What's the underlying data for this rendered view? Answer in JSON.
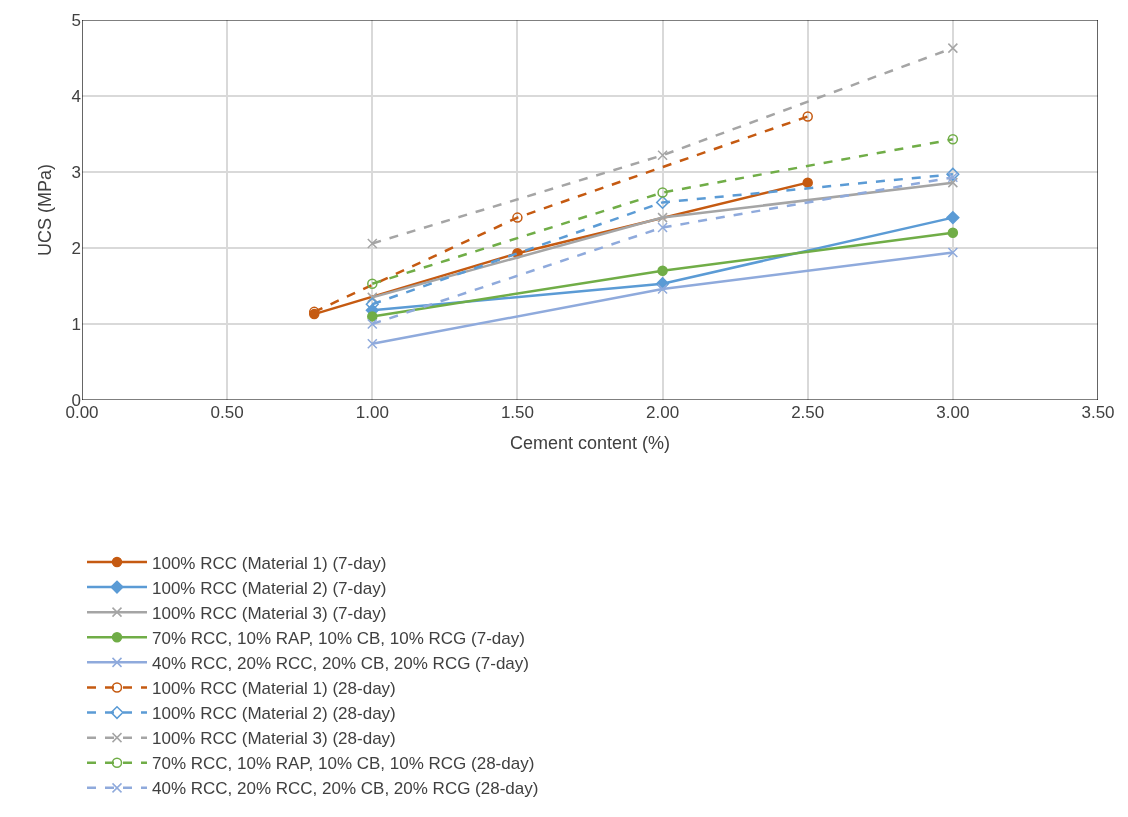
{
  "chart_data": {
    "type": "line",
    "xlabel": "Cement content (%)",
    "ylabel": "UCS (MPa)",
    "xlim": [
      0,
      3.5
    ],
    "xticks": [
      {
        "value": 0,
        "label": "0.00"
      },
      {
        "value": 0.5,
        "label": "0.50"
      },
      {
        "value": 1,
        "label": "1.00"
      },
      {
        "value": 1.5,
        "label": "1.50"
      },
      {
        "value": 2,
        "label": "2.00"
      },
      {
        "value": 2.5,
        "label": "2.50"
      },
      {
        "value": 3,
        "label": "3.00"
      },
      {
        "value": 3.5,
        "label": "3.50"
      }
    ],
    "ylim": [
      0,
      5
    ],
    "yticks": [
      0,
      1,
      2,
      3,
      4,
      5
    ],
    "grid": true,
    "legend": "bottom",
    "series": [
      {
        "name": "100% RCC (Material 1) (7-day)",
        "color": "#c55a11",
        "x": [
          0.8,
          1.5,
          2.5
        ],
        "values": [
          1.13,
          1.93,
          2.86
        ],
        "marker": "circle",
        "line_style": "solid"
      },
      {
        "name": "100% RCC (Material 2) (7-day)",
        "color": "#5b9bd5",
        "x": [
          1,
          2,
          3
        ],
        "values": [
          1.18,
          1.53,
          2.4
        ],
        "marker": "diamond",
        "line_style": "solid"
      },
      {
        "name": "100% RCC (Material 3) (7-day)",
        "color": "#a5a5a5",
        "x": [
          1,
          2,
          3
        ],
        "values": [
          1.35,
          2.4,
          2.86
        ],
        "marker": "cross",
        "line_style": "solid"
      },
      {
        "name": "70% RCC, 10% RAP, 10% CB, 10% RCG (7-day)",
        "color": "#70ad47",
        "x": [
          1,
          2,
          3
        ],
        "values": [
          1.1,
          1.7,
          2.2
        ],
        "marker": "circle",
        "line_style": "solid"
      },
      {
        "name": "40% RCC, 20% RCC, 20% CB, 20% RCG (7-day)",
        "color": "#8faadc",
        "x": [
          1,
          2,
          3
        ],
        "values": [
          0.74,
          1.46,
          1.94
        ],
        "marker": "cross",
        "line_style": "solid"
      },
      {
        "name": "100% RCC (Material 1) (28-day)",
        "color": "#c55a11",
        "x": [
          0.8,
          1.5,
          2.5
        ],
        "values": [
          1.16,
          2.4,
          3.73
        ],
        "marker": "circle",
        "line_style": "dashed"
      },
      {
        "name": "100% RCC (Material 2) (28-day)",
        "color": "#5b9bd5",
        "x": [
          1,
          2,
          3
        ],
        "values": [
          1.26,
          2.6,
          2.97
        ],
        "marker": "diamond",
        "line_style": "dashed"
      },
      {
        "name": "100% RCC (Material 3) (28-day)",
        "color": "#a5a5a5",
        "x": [
          1,
          2,
          3
        ],
        "values": [
          2.06,
          3.22,
          4.63
        ],
        "marker": "cross",
        "line_style": "dashed"
      },
      {
        "name": "70% RCC, 10% RAP, 10% CB, 10% RCG (28-day)",
        "color": "#70ad47",
        "x": [
          1,
          2,
          3
        ],
        "values": [
          1.53,
          2.73,
          3.43
        ],
        "marker": "circle",
        "line_style": "dashed"
      },
      {
        "name": "40% RCC, 20% RCC, 20% CB, 20% RCG (28-day)",
        "color": "#8faadc",
        "x": [
          1,
          2,
          3
        ],
        "values": [
          1.0,
          2.27,
          2.93
        ],
        "marker": "cross",
        "line_style": "dashed"
      }
    ]
  }
}
